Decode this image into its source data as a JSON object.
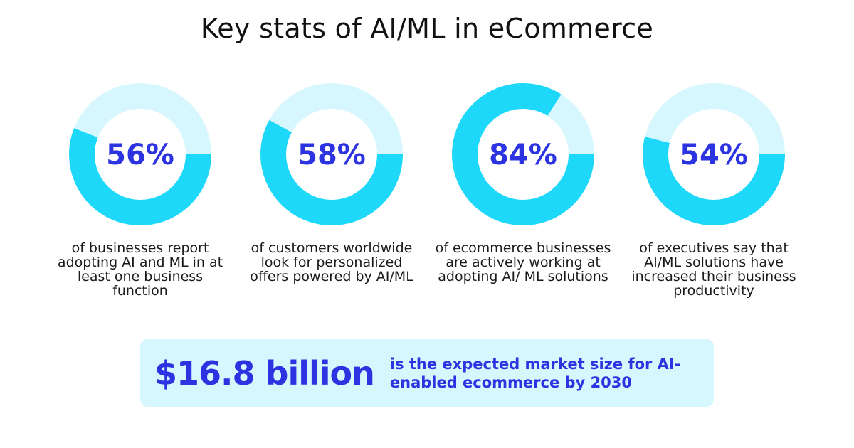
{
  "title": "Key stats of AI/ML in eCommerce",
  "colors": {
    "fill": "#1ed8fa",
    "track": "#d6f7fd",
    "accent_text": "#2c33e0",
    "banner_bg": "#d6f7fd"
  },
  "chart_data": {
    "type": "pie",
    "items": [
      {
        "value": 56,
        "label": "56%",
        "description": "of businesses report adopting AI and ML in at least one business function"
      },
      {
        "value": 58,
        "label": "58%",
        "description": "of customers worldwide look for personalized offers powered by AI/ML"
      },
      {
        "value": 84,
        "label": "84%",
        "description": "of ecommerce businesses are actively working at adopting AI/ ML solutions"
      },
      {
        "value": 54,
        "label": "54%",
        "description": "of executives say that AI/ML solutions have increased their business productivity"
      }
    ]
  },
  "banner": {
    "value": "$16.8 billion",
    "text": "is the expected market size for AI-enabled ecommerce by 2030"
  }
}
